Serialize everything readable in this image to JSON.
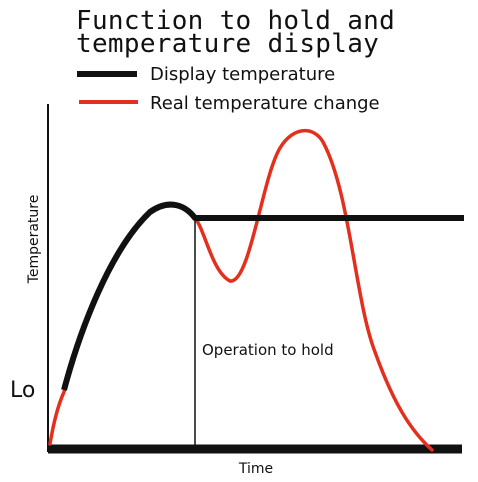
{
  "figure": {
    "title_lines": [
      "Function to hold and",
      "temperature display"
    ],
    "legend": [
      {
        "label": "Display temperature",
        "color": "#111111"
      },
      {
        "label": "Real temperature change",
        "color": "#e3301e"
      }
    ],
    "y_axis_label": "Temperature",
    "x_axis_label": "Time",
    "lo_label": "Lo",
    "annotation": "Operation to hold"
  },
  "colors": {
    "display_line": "#111111",
    "real_line": "#e3301e",
    "axis": "#111111",
    "background": "#ffffff"
  }
}
